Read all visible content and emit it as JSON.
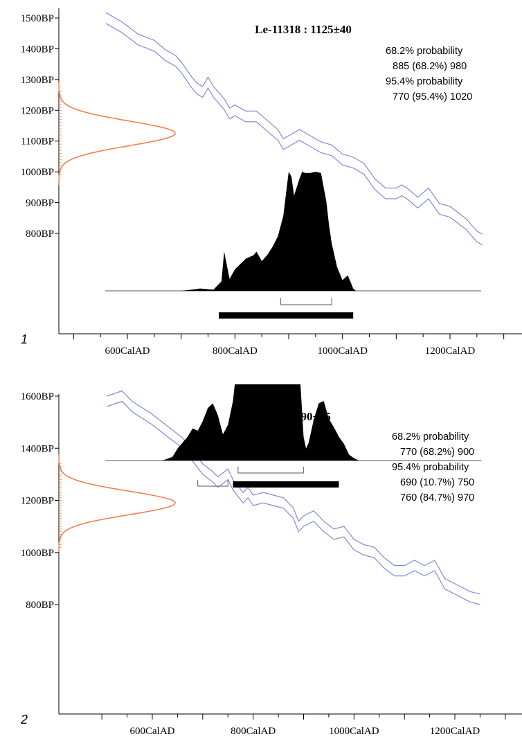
{
  "chart_data": [
    {
      "type": "radiocarbon-calibration",
      "panel_label": "1",
      "title": "Le-11318 : 1125±40",
      "measurement": {
        "bp": 1125,
        "sigma": 40
      },
      "x_tick_labels": [
        "600CalAD",
        "800CalAD",
        "1000CalAD",
        "1200CalAD"
      ],
      "x_ticks": [
        600,
        800,
        1000,
        1200
      ],
      "xlim": [
        470,
        1270
      ],
      "y_tick_labels": [
        "1500BP",
        "1400BP",
        "1300BP",
        "1200BP",
        "1100BP",
        "1000BP",
        "900BP",
        "800BP"
      ],
      "y_ticks": [
        1500,
        1400,
        1300,
        1200,
        1100,
        1000,
        900,
        800
      ],
      "ylim": [
        500,
        1510
      ],
      "probability_text": [
        "68.2% probability",
        "885 (68.2%) 980",
        "95.4% probability",
        "770 (95.4%) 1020"
      ],
      "ranges_68": [
        [
          885,
          980
        ]
      ],
      "ranges_95": [
        [
          770,
          1020
        ]
      ],
      "calibration_curve": {
        "x": [
          560,
          590,
          620,
          650,
          670,
          690,
          700,
          720,
          730,
          740,
          750,
          760,
          780,
          790,
          800,
          820,
          840,
          860,
          880,
          890,
          900,
          920,
          940,
          960,
          980,
          1000,
          1020,
          1040,
          1060,
          1080,
          1100,
          1110,
          1120,
          1140,
          1160,
          1180,
          1200,
          1230,
          1250,
          1260
        ],
        "y": [
          1500,
          1470,
          1430,
          1410,
          1380,
          1360,
          1340,
          1290,
          1270,
          1260,
          1290,
          1260,
          1220,
          1190,
          1200,
          1180,
          1180,
          1150,
          1120,
          1090,
          1100,
          1120,
          1100,
          1080,
          1070,
          1040,
          1030,
          1010,
          960,
          930,
          930,
          940,
          930,
          900,
          930,
          880,
          870,
          830,
          790,
          780
        ],
        "width_bp": 35
      },
      "distribution": {
        "x": [
          680,
          700,
          720,
          735,
          760,
          775,
          780,
          790,
          800,
          820,
          835,
          840,
          850,
          860,
          870,
          880,
          890,
          900,
          905,
          910,
          920,
          925,
          930,
          940,
          950,
          960,
          970,
          975,
          980,
          990,
          1000,
          1010,
          1020,
          1025
        ],
        "y": [
          0.0,
          0.0,
          0.01,
          0.02,
          0.01,
          0.08,
          0.33,
          0.1,
          0.18,
          0.27,
          0.3,
          0.33,
          0.25,
          0.3,
          0.37,
          0.46,
          0.63,
          1.0,
          0.96,
          0.8,
          0.94,
          1.0,
          0.99,
          0.99,
          1.0,
          0.99,
          0.75,
          0.55,
          0.4,
          0.2,
          0.09,
          0.13,
          0.02,
          0.0
        ]
      },
      "bp_distribution": {
        "mean": 1125,
        "sigma": 40
      }
    },
    {
      "type": "radiocarbon-calibration",
      "panel_label": "2",
      "title": "Le-11319 : 1190±45",
      "measurement": {
        "bp": 1190,
        "sigma": 45
      },
      "x_tick_labels": [
        "600CalAD",
        "800CalAD",
        "1000CalAD",
        "1200CalAD"
      ],
      "x_ticks": [
        600,
        800,
        1000,
        1200
      ],
      "xlim": [
        460,
        1300
      ],
      "y_tick_labels": [
        "1600BP",
        "1400BP",
        "1200BP",
        "1000BP",
        "800BP"
      ],
      "y_ticks": [
        1600,
        1400,
        1200,
        1000,
        800
      ],
      "ylim": [
        500,
        1600
      ],
      "probability_text": [
        "68.2% probability",
        "770 (68.2%) 900",
        "95.4% probability",
        "690 (10.7%) 750",
        "760 (84.7%) 970"
      ],
      "ranges_68": [
        [
          770,
          900
        ]
      ],
      "ranges_95": [
        [
          690,
          750
        ],
        [
          760,
          970
        ]
      ],
      "calibration_curve": {
        "x": [
          510,
          540,
          560,
          600,
          640,
          660,
          680,
          700,
          720,
          730,
          750,
          760,
          780,
          790,
          800,
          820,
          840,
          860,
          880,
          890,
          900,
          920,
          940,
          960,
          980,
          1000,
          1020,
          1040,
          1060,
          1080,
          1100,
          1120,
          1140,
          1160,
          1180,
          1200,
          1230,
          1250
        ],
        "y": [
          1580,
          1600,
          1560,
          1510,
          1450,
          1420,
          1370,
          1320,
          1290,
          1270,
          1300,
          1260,
          1210,
          1230,
          1200,
          1210,
          1200,
          1190,
          1150,
          1100,
          1120,
          1140,
          1100,
          1070,
          1080,
          1030,
          1010,
          1000,
          960,
          930,
          930,
          950,
          930,
          950,
          880,
          860,
          830,
          820
        ],
        "width_bp": 40
      },
      "distribution": {
        "x": [
          620,
          640,
          650,
          670,
          680,
          690,
          700,
          710,
          720,
          730,
          740,
          750,
          760,
          770,
          775,
          780,
          790,
          800,
          820,
          850,
          870,
          880,
          890,
          895,
          900,
          905,
          910,
          920,
          930,
          940,
          950,
          960,
          970,
          980,
          990,
          1000,
          1010,
          1020
        ],
        "y": [
          0.0,
          0.03,
          0.1,
          0.2,
          0.27,
          0.25,
          0.33,
          0.44,
          0.48,
          0.38,
          0.22,
          0.3,
          0.5,
          0.89,
          1.0,
          0.96,
          0.9,
          0.98,
          1.0,
          1.0,
          0.99,
          0.97,
          0.9,
          0.55,
          0.2,
          0.1,
          0.15,
          0.34,
          0.48,
          0.5,
          0.35,
          0.28,
          0.2,
          0.14,
          0.05,
          0.02,
          0.0,
          0.0
        ]
      },
      "bp_distribution": {
        "mean": 1190,
        "sigma": 45
      }
    }
  ],
  "colors": {
    "curve": "#8088e0",
    "bp_curve": "#f08050",
    "distribution_fill": "#000000",
    "axis": "#000000",
    "range_bracket": "#777777"
  }
}
